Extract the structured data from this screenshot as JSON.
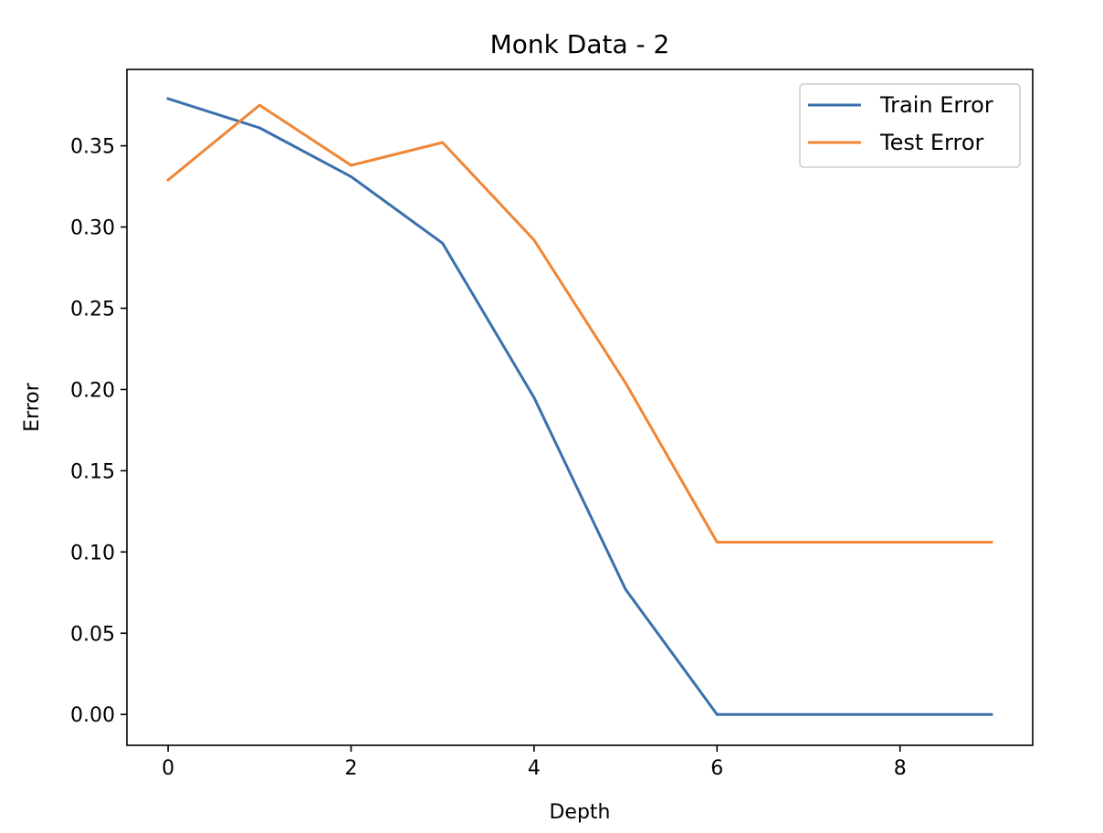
{
  "chart_data": {
    "type": "line",
    "title": "Monk Data - 2",
    "xlabel": "Depth",
    "ylabel": "Error",
    "xlim": [
      -0.45,
      9.45
    ],
    "ylim": [
      -0.019,
      0.397
    ],
    "xticks": [
      0,
      2,
      4,
      6,
      8
    ],
    "xtick_labels": [
      "0",
      "2",
      "4",
      "6",
      "8"
    ],
    "yticks": [
      0.0,
      0.05,
      0.1,
      0.15,
      0.2,
      0.25,
      0.3,
      0.35
    ],
    "ytick_labels": [
      "0.00",
      "0.05",
      "0.10",
      "0.15",
      "0.20",
      "0.25",
      "0.30",
      "0.35"
    ],
    "grid": false,
    "legend_position": "top-right",
    "x": [
      0,
      1,
      2,
      3,
      4,
      5,
      6,
      7,
      8,
      9
    ],
    "series": [
      {
        "name": "Train Error",
        "color": "#3a70ad",
        "values": [
          0.379,
          0.361,
          0.331,
          0.29,
          0.195,
          0.077,
          0.0,
          0.0,
          0.0,
          0.0
        ]
      },
      {
        "name": "Test Error",
        "color": "#ef8636",
        "values": [
          0.329,
          0.375,
          0.338,
          0.352,
          0.292,
          0.204,
          0.106,
          0.106,
          0.106,
          0.106
        ]
      }
    ]
  }
}
